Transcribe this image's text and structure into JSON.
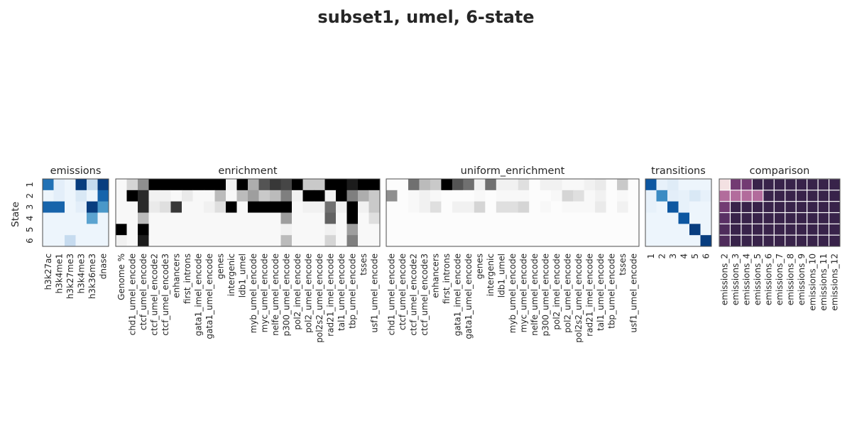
{
  "title": "subset1, umel, 6-state",
  "y_axis_label": "State",
  "state_labels": [
    "1",
    "2",
    "3",
    "4",
    "5",
    "6"
  ],
  "chart_data": [
    {
      "type": "heatmap",
      "title": "emissions",
      "colormap": "Blues",
      "rows": [
        "1",
        "2",
        "3",
        "4",
        "5",
        "6"
      ],
      "columns": [
        "h3k27ac",
        "h3k4me1",
        "h3k27me3",
        "h3k4me3",
        "h3k36me3",
        "dnase"
      ],
      "values": [
        [
          0.75,
          0.1,
          0.05,
          0.95,
          0.25,
          0.95
        ],
        [
          0.05,
          0.1,
          0.05,
          0.15,
          0.05,
          0.8
        ],
        [
          0.8,
          0.8,
          0.05,
          0.1,
          0.95,
          0.6
        ],
        [
          0.05,
          0.05,
          0.05,
          0.05,
          0.55,
          0.05
        ],
        [
          0.05,
          0.05,
          0.05,
          0.05,
          0.05,
          0.05
        ],
        [
          0.05,
          0.05,
          0.25,
          0.05,
          0.05,
          0.05
        ]
      ]
    },
    {
      "type": "heatmap",
      "title": "enrichment",
      "colormap": "Greys",
      "rows": [
        "1",
        "2",
        "3",
        "4",
        "5",
        "6"
      ],
      "columns": [
        "Genome %",
        "chd1_umel_encode",
        "ctcf_umel_encode",
        "ctcf_umel_encode2",
        "ctcf_umel_encode3",
        "enhancers",
        "first_introns",
        "gata1_imel_encode",
        "gata1_umel_encode",
        "genes",
        "intergenic",
        "ldb1_umel",
        "myb_umel_encode",
        "myc_umel_encode",
        "nelfe_umel_encode",
        "p300_umel_encode",
        "pol2_imel_encode",
        "pol2_umel_encode",
        "pol2s2_umel_encode",
        "rad21_imel_encode",
        "tal1_umel_encode",
        "tbp_umel_encode",
        "tsses",
        "usf1_umel_encode"
      ],
      "values": [
        [
          0.05,
          0.25,
          0.5,
          1.0,
          1.0,
          1.0,
          1.0,
          1.0,
          1.0,
          1.0,
          0.1,
          1.0,
          0.4,
          0.7,
          0.8,
          0.75,
          1.0,
          0.3,
          0.3,
          1.0,
          1.0,
          0.9,
          1.0,
          1.0
        ],
        [
          0.05,
          1.0,
          0.85,
          0.1,
          0.1,
          0.05,
          0.15,
          0.05,
          0.05,
          0.35,
          0.05,
          0.35,
          0.45,
          0.3,
          0.35,
          0.55,
          0.1,
          1.0,
          1.0,
          0.1,
          1.0,
          0.55,
          0.4,
          0.3
        ],
        [
          0.05,
          0.05,
          0.85,
          0.15,
          0.2,
          0.8,
          0.05,
          0.05,
          0.1,
          0.2,
          1.0,
          0.05,
          1.0,
          1.0,
          1.0,
          1.0,
          0.05,
          0.1,
          0.1,
          0.6,
          0.1,
          1.0,
          0.1,
          0.3
        ],
        [
          0.05,
          0.05,
          0.35,
          0.05,
          0.05,
          0.05,
          0.05,
          0.05,
          0.05,
          0.05,
          0.05,
          0.05,
          0.05,
          0.05,
          0.05,
          0.45,
          0.05,
          0.05,
          0.05,
          0.65,
          0.05,
          1.0,
          0.05,
          0.2
        ],
        [
          1.0,
          0.05,
          1.0,
          0.05,
          0.05,
          0.05,
          0.05,
          0.05,
          0.05,
          0.05,
          0.05,
          0.05,
          0.05,
          0.05,
          0.05,
          0.1,
          0.05,
          0.05,
          0.05,
          0.1,
          0.05,
          0.45,
          0.05,
          0.05
        ],
        [
          0.1,
          0.05,
          0.9,
          0.05,
          0.05,
          0.05,
          0.05,
          0.05,
          0.05,
          0.05,
          0.05,
          0.05,
          0.05,
          0.05,
          0.05,
          0.35,
          0.05,
          0.05,
          0.05,
          0.25,
          0.05,
          0.55,
          0.05,
          0.05
        ]
      ]
    },
    {
      "type": "heatmap",
      "title": "uniform_enrichment",
      "colormap": "Greys",
      "rows": [
        "1",
        "2",
        "3",
        "4",
        "5",
        "6"
      ],
      "columns": [
        "chd1_umel_encode",
        "ctcf_umel_encode",
        "ctcf_umel_encode2",
        "ctcf_umel_encode3",
        "enhancers",
        "first_introns",
        "gata1_imel_encode",
        "gata1_umel_encode",
        "genes",
        "intergenic",
        "ldb1_umel",
        "myb_umel_encode",
        "myc_umel_encode",
        "nelfe_umel_encode",
        "p300_umel_encode",
        "pol2_imel_encode",
        "pol2_umel_encode",
        "pol2s2_umel_encode",
        "rad21_imel_encode",
        "tal1_umel_encode",
        "tbp_umel_encode",
        "tsses",
        "usf1_umel_encode"
      ],
      "values": [
        [
          0.02,
          0.02,
          0.6,
          0.35,
          0.3,
          1.0,
          0.7,
          0.6,
          0.1,
          0.6,
          0.1,
          0.1,
          0.2,
          0.02,
          0.1,
          0.1,
          0.05,
          0.05,
          0.1,
          0.15,
          0.02,
          0.3,
          0.02
        ],
        [
          0.5,
          0.02,
          0.05,
          0.1,
          0.05,
          0.02,
          0.02,
          0.02,
          0.05,
          0.02,
          0.05,
          0.05,
          0.05,
          0.02,
          0.02,
          0.05,
          0.25,
          0.2,
          0.05,
          0.1,
          0.02,
          0.05,
          0.02
        ],
        [
          0.02,
          0.02,
          0.05,
          0.1,
          0.2,
          0.02,
          0.1,
          0.1,
          0.25,
          0.02,
          0.2,
          0.2,
          0.25,
          0.02,
          0.05,
          0.02,
          0.05,
          0.05,
          0.05,
          0.15,
          0.02,
          0.1,
          0.02
        ],
        [
          0.02,
          0.02,
          0.02,
          0.02,
          0.02,
          0.02,
          0.02,
          0.02,
          0.02,
          0.02,
          0.02,
          0.02,
          0.02,
          0.02,
          0.02,
          0.02,
          0.02,
          0.02,
          0.02,
          0.02,
          0.02,
          0.02,
          0.02
        ],
        [
          0.02,
          0.02,
          0.02,
          0.02,
          0.02,
          0.02,
          0.02,
          0.02,
          0.02,
          0.02,
          0.02,
          0.02,
          0.02,
          0.02,
          0.02,
          0.02,
          0.02,
          0.02,
          0.02,
          0.02,
          0.02,
          0.02,
          0.02
        ],
        [
          0.02,
          0.02,
          0.02,
          0.02,
          0.02,
          0.02,
          0.02,
          0.02,
          0.02,
          0.02,
          0.02,
          0.02,
          0.02,
          0.02,
          0.02,
          0.02,
          0.02,
          0.02,
          0.02,
          0.02,
          0.02,
          0.02,
          0.02
        ]
      ]
    },
    {
      "type": "heatmap",
      "title": "transitions",
      "colormap": "Blues",
      "rows": [
        "1",
        "2",
        "3",
        "4",
        "5",
        "6"
      ],
      "columns": [
        "1",
        "2",
        "3",
        "4",
        "5",
        "6"
      ],
      "values": [
        [
          0.85,
          0.08,
          0.12,
          0.05,
          0.05,
          0.05
        ],
        [
          0.08,
          0.65,
          0.1,
          0.08,
          0.15,
          0.08
        ],
        [
          0.08,
          0.05,
          0.85,
          0.08,
          0.05,
          0.05
        ],
        [
          0.05,
          0.05,
          0.05,
          0.85,
          0.05,
          0.05
        ],
        [
          0.05,
          0.05,
          0.05,
          0.05,
          0.95,
          0.05
        ],
        [
          0.05,
          0.05,
          0.05,
          0.05,
          0.05,
          0.95
        ]
      ]
    },
    {
      "type": "heatmap",
      "title": "comparison",
      "colormap": "cubehelix_r",
      "rows": [
        "1",
        "2",
        "3",
        "4",
        "5",
        "6"
      ],
      "columns": [
        "emissions_2",
        "emissions_3",
        "emissions_4",
        "emissions_5",
        "emissions_6",
        "emissions_7",
        "emissions_8",
        "emissions_9",
        "emissions_10",
        "emissions_11",
        "emissions_12"
      ],
      "values": [
        [
          0.05,
          0.7,
          0.7,
          0.95,
          0.95,
          0.95,
          0.95,
          0.95,
          0.95,
          0.95,
          0.95
        ],
        [
          0.45,
          0.45,
          0.45,
          0.45,
          0.95,
          0.95,
          0.95,
          0.95,
          0.95,
          0.95,
          0.95
        ],
        [
          0.7,
          0.95,
          0.95,
          0.95,
          0.95,
          0.95,
          0.95,
          0.95,
          0.95,
          0.95,
          0.95
        ],
        [
          0.8,
          0.95,
          0.95,
          0.95,
          0.95,
          0.95,
          0.95,
          0.95,
          0.95,
          0.95,
          0.95
        ],
        [
          0.85,
          0.95,
          0.95,
          0.95,
          0.95,
          0.95,
          0.95,
          0.95,
          0.95,
          0.95,
          0.95
        ],
        [
          0.85,
          0.95,
          0.95,
          0.95,
          0.95,
          0.95,
          0.95,
          0.95,
          0.95,
          0.95,
          0.95
        ]
      ]
    }
  ]
}
